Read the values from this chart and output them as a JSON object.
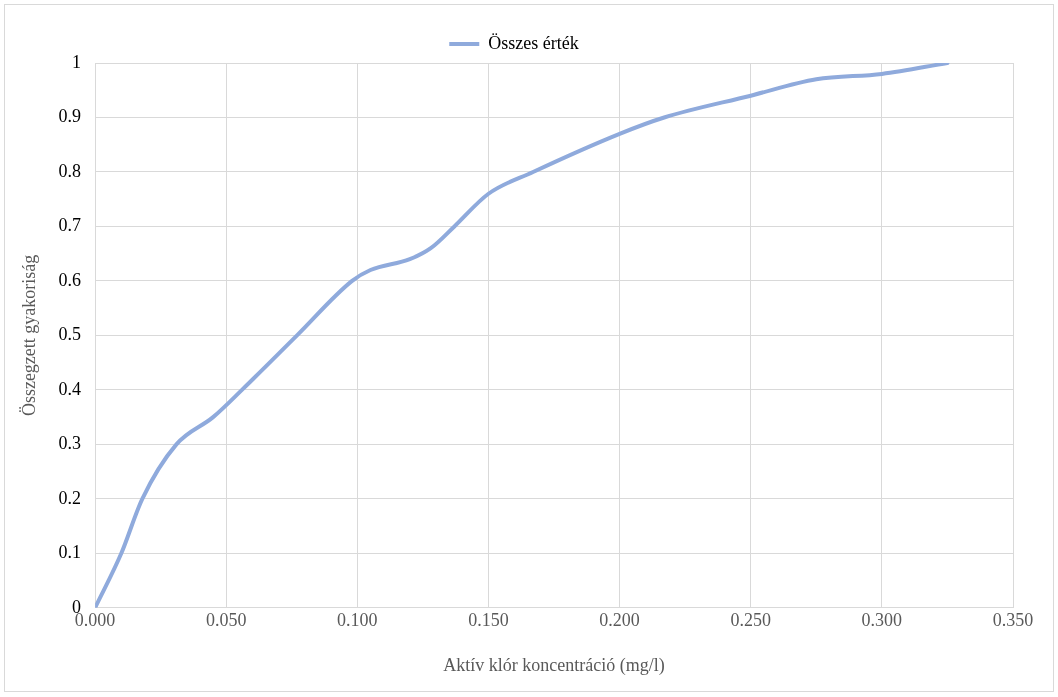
{
  "chart_data": {
    "type": "line",
    "xlabel": "Aktív klór koncentráció (mg/l)",
    "ylabel": "Összegzett gyakoriság",
    "series": [
      {
        "name": "Összes érték",
        "color": "#8faadc",
        "x": [
          0,
          0.01,
          0.018,
          0.031,
          0.045,
          0.056,
          0.077,
          0.098,
          0.105,
          0.12,
          0.128,
          0.137,
          0.15,
          0.167,
          0.2,
          0.217,
          0.25,
          0.275,
          0.3,
          0.325
        ],
        "values": [
          0,
          0.1,
          0.2,
          0.3,
          0.35,
          0.4,
          0.5,
          0.6,
          0.62,
          0.64,
          0.66,
          0.7,
          0.76,
          0.8,
          0.87,
          0.9,
          0.94,
          0.97,
          0.98,
          1.0
        ]
      }
    ],
    "xlim": [
      0,
      0.35
    ],
    "xticks": [
      {
        "value": 0,
        "label": "0.000"
      },
      {
        "value": 0.05,
        "label": "0.050"
      },
      {
        "value": 0.1,
        "label": "0.100"
      },
      {
        "value": 0.15,
        "label": "0.150"
      },
      {
        "value": 0.2,
        "label": "0.200"
      },
      {
        "value": 0.25,
        "label": "0.250"
      },
      {
        "value": 0.3,
        "label": "0.300"
      },
      {
        "value": 0.35,
        "label": "0.350"
      }
    ],
    "ylim": [
      0,
      1
    ],
    "yticks": [
      0,
      0.1,
      0.2,
      0.3,
      0.4,
      0.5,
      0.6,
      0.7,
      0.8,
      0.9,
      1
    ],
    "grid": true,
    "legend": "top",
    "marker": "none",
    "line_style": "solid"
  }
}
